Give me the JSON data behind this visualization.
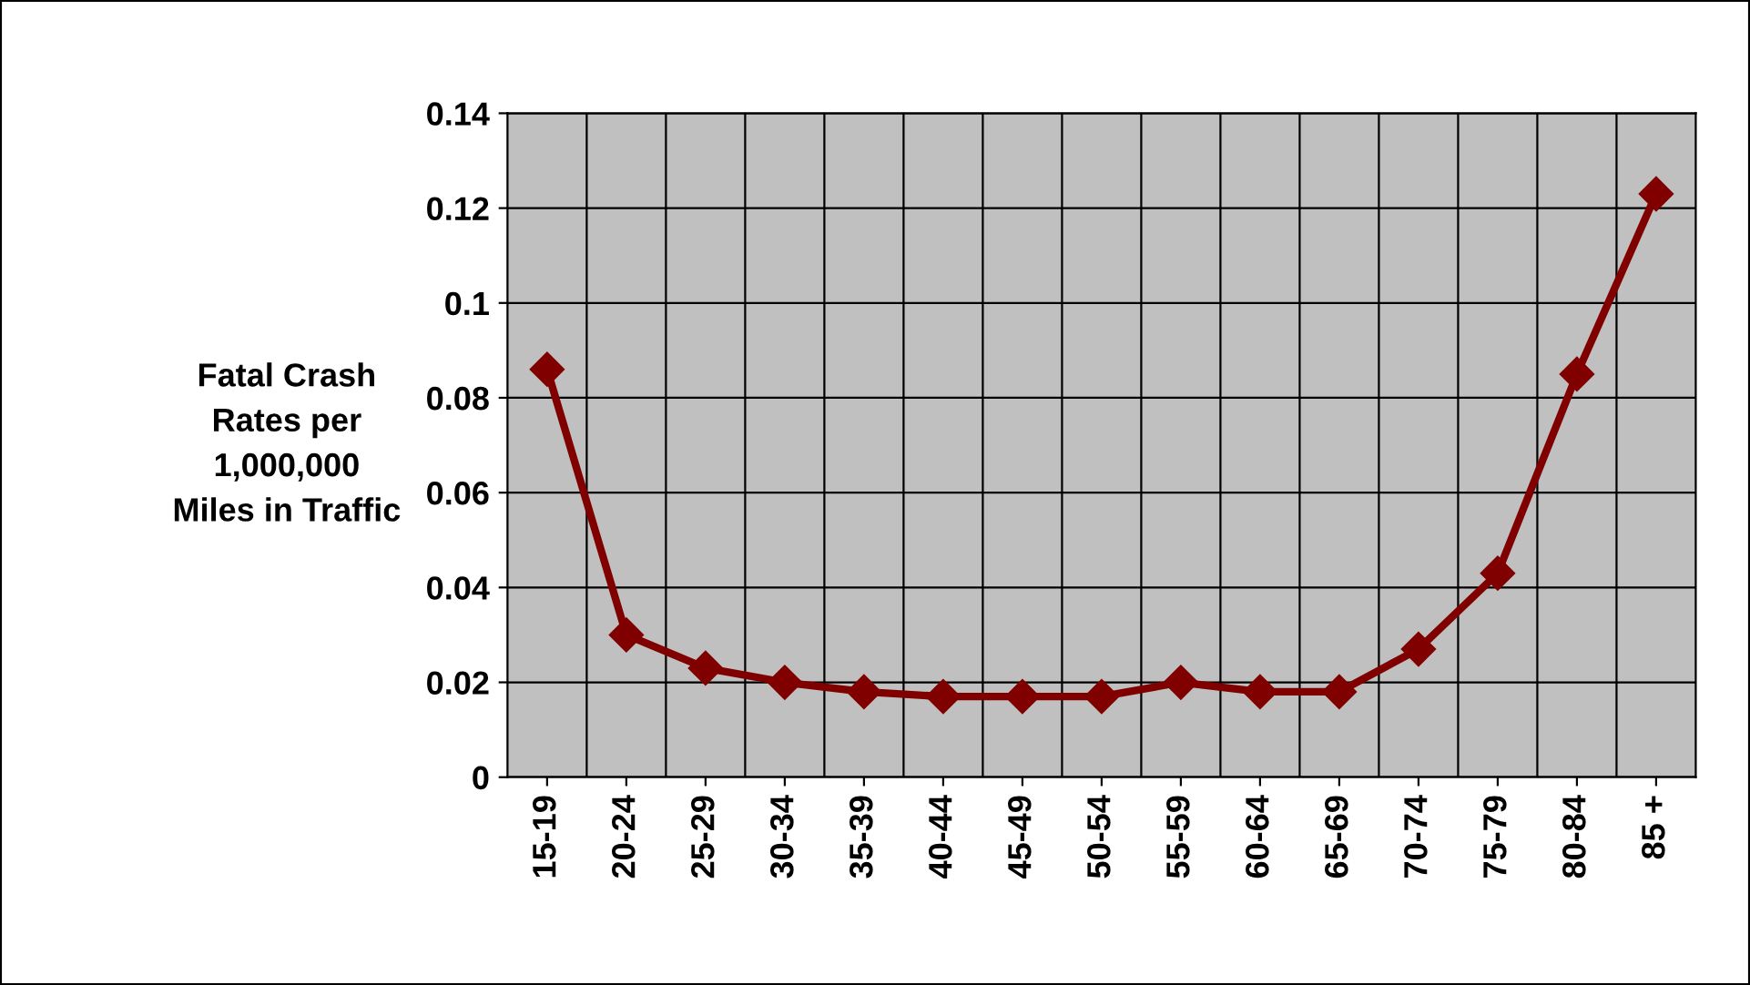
{
  "chart_data": {
    "type": "line",
    "ylabel": "Fatal Crash\nRates per\n1,000,000\nMiles in Traffic",
    "categories": [
      "15-19",
      "20-24",
      "25-29",
      "30-34",
      "35-39",
      "40-44",
      "45-49",
      "50-54",
      "55-59",
      "60-64",
      "65-69",
      "70-74",
      "75-79",
      "80-84",
      "85 +"
    ],
    "series": [
      {
        "color": "#800000",
        "values": [
          0.086,
          0.03,
          0.023,
          0.02,
          0.018,
          0.017,
          0.017,
          0.017,
          0.02,
          0.018,
          0.018,
          0.027,
          0.043,
          0.085,
          0.123
        ]
      }
    ],
    "ylim": [
      0,
      0.14
    ],
    "yticks": [
      0,
      0.02,
      0.04,
      0.06,
      0.08,
      0.1,
      0.12,
      0.14
    ],
    "grid": true,
    "marker": "diamond",
    "line_style": "solid",
    "legend": false
  }
}
